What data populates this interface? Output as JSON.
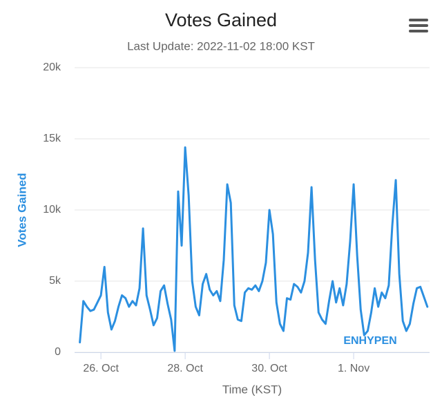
{
  "chart_data": {
    "type": "line",
    "title": "Votes Gained",
    "subtitle": "Last Update: 2022-11-02 18:00 KST",
    "x_label": "Time (KST)",
    "y_label": "Votes Gained",
    "xlim": [
      "2022-10-25 09:00",
      "2022-11-02 19:15"
    ],
    "xticks": [
      {
        "value": "2022-10-26 00:00",
        "label": "26. Oct"
      },
      {
        "value": "2022-10-28 00:00",
        "label": "28. Oct"
      },
      {
        "value": "2022-10-30 00:00",
        "label": "30. Oct"
      },
      {
        "value": "2022-11-01 00:00",
        "label": "1. Nov"
      }
    ],
    "ylim": [
      0,
      20000
    ],
    "yticks": [
      0,
      {
        "value": 5000,
        "label": "5k"
      },
      {
        "value": 10000,
        "label": "10k"
      },
      {
        "value": 15000,
        "label": "15k"
      },
      {
        "value": 20000,
        "label": "20k"
      }
    ],
    "grid": true,
    "x": [
      "2022-10-25 12:00",
      "2022-10-25 14:00",
      "2022-10-25 16:00",
      "2022-10-25 18:00",
      "2022-10-25 20:00",
      "2022-10-25 22:00",
      "2022-10-26 00:00",
      "2022-10-26 02:00",
      "2022-10-26 04:00",
      "2022-10-26 06:00",
      "2022-10-26 08:00",
      "2022-10-26 10:00",
      "2022-10-26 12:00",
      "2022-10-26 14:00",
      "2022-10-26 16:00",
      "2022-10-26 18:00",
      "2022-10-26 20:00",
      "2022-10-26 22:00",
      "2022-10-27 00:00",
      "2022-10-27 02:00",
      "2022-10-27 04:00",
      "2022-10-27 06:00",
      "2022-10-27 08:00",
      "2022-10-27 10:00",
      "2022-10-27 12:00",
      "2022-10-27 14:00",
      "2022-10-27 16:00",
      "2022-10-27 18:00",
      "2022-10-27 20:00",
      "2022-10-27 22:00",
      "2022-10-28 00:00",
      "2022-10-28 02:00",
      "2022-10-28 04:00",
      "2022-10-28 06:00",
      "2022-10-28 08:00",
      "2022-10-28 10:00",
      "2022-10-28 12:00",
      "2022-10-28 14:00",
      "2022-10-28 16:00",
      "2022-10-28 18:00",
      "2022-10-28 20:00",
      "2022-10-28 22:00",
      "2022-10-29 00:00",
      "2022-10-29 02:00",
      "2022-10-29 04:00",
      "2022-10-29 06:00",
      "2022-10-29 08:00",
      "2022-10-29 10:00",
      "2022-10-29 12:00",
      "2022-10-29 14:00",
      "2022-10-29 16:00",
      "2022-10-29 18:00",
      "2022-10-29 20:00",
      "2022-10-29 22:00",
      "2022-10-30 00:00",
      "2022-10-30 02:00",
      "2022-10-30 04:00",
      "2022-10-30 06:00",
      "2022-10-30 08:00",
      "2022-10-30 10:00",
      "2022-10-30 12:00",
      "2022-10-30 14:00",
      "2022-10-30 16:00",
      "2022-10-30 18:00",
      "2022-10-30 20:00",
      "2022-10-30 22:00",
      "2022-10-31 00:00",
      "2022-10-31 02:00",
      "2022-10-31 04:00",
      "2022-10-31 06:00",
      "2022-10-31 08:00",
      "2022-10-31 10:00",
      "2022-10-31 12:00",
      "2022-10-31 14:00",
      "2022-10-31 16:00",
      "2022-10-31 18:00",
      "2022-10-31 20:00",
      "2022-10-31 22:00",
      "2022-11-01 00:00",
      "2022-11-01 02:00",
      "2022-11-01 04:00",
      "2022-11-01 06:00",
      "2022-11-01 08:00",
      "2022-11-01 10:00",
      "2022-11-01 12:00",
      "2022-11-01 14:00",
      "2022-11-01 16:00",
      "2022-11-01 18:00",
      "2022-11-01 20:00",
      "2022-11-01 22:00",
      "2022-11-02 00:00",
      "2022-11-02 02:00",
      "2022-11-02 04:00",
      "2022-11-02 06:00",
      "2022-11-02 08:00",
      "2022-11-02 10:00",
      "2022-11-02 12:00",
      "2022-11-02 14:00",
      "2022-11-02 16:00",
      "2022-11-02 18:00"
    ],
    "series": [
      {
        "name": "ENHYPEN",
        "color": "#2b8fe0",
        "values": [
          700,
          3600,
          3200,
          2900,
          3000,
          3500,
          4000,
          6000,
          2800,
          1600,
          2200,
          3200,
          4000,
          3800,
          3200,
          3600,
          3300,
          4500,
          8700,
          4000,
          3000,
          1900,
          2400,
          4300,
          4700,
          3400,
          2300,
          100,
          11300,
          7500,
          14400,
          11000,
          5000,
          3200,
          2600,
          4800,
          5500,
          4400,
          4000,
          4300,
          3600,
          6500,
          11800,
          10500,
          3300,
          2300,
          2200,
          4200,
          4500,
          4400,
          4700,
          4300,
          5000,
          6300,
          10000,
          8300,
          3500,
          2000,
          1500,
          3800,
          3700,
          4800,
          4600,
          4200,
          5000,
          7000,
          11600,
          6500,
          2800,
          2300,
          2000,
          3600,
          5000,
          3500,
          4500,
          3300,
          4800,
          7800,
          11800,
          6800,
          3000,
          1200,
          1500,
          2800,
          4500,
          3200,
          4200,
          3800,
          4700,
          8900,
          12100,
          5500,
          2200,
          1500,
          2000,
          3400,
          4500,
          4600,
          3900,
          3200
        ]
      }
    ]
  }
}
